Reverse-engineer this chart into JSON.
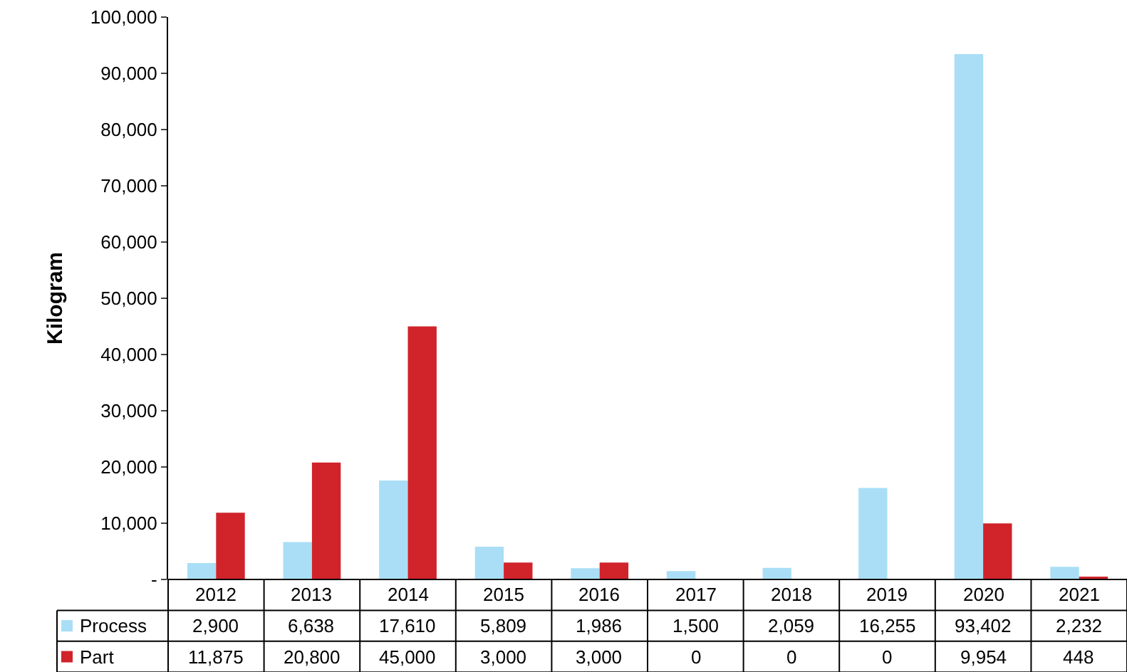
{
  "chart_data": {
    "type": "bar",
    "ylabel": "Kilogram",
    "categories": [
      "2012",
      "2013",
      "2014",
      "2015",
      "2016",
      "2017",
      "2018",
      "2019",
      "2020",
      "2021"
    ],
    "series": [
      {
        "name": "Process",
        "color": "#a9def6",
        "values": [
          2900,
          6638,
          17610,
          5809,
          1986,
          1500,
          2059,
          16255,
          93402,
          2232
        ],
        "value_labels": [
          "2,900",
          "6,638",
          "17,610",
          "5,809",
          "1,986",
          "1,500",
          "2,059",
          "16,255",
          "93,402",
          "2,232"
        ]
      },
      {
        "name": "Part",
        "color": "#d0232a",
        "values": [
          11875,
          20800,
          45000,
          3000,
          3000,
          0,
          0,
          0,
          9954,
          448
        ],
        "value_labels": [
          "11,875",
          "20,800",
          "45,000",
          "3,000",
          "3,000",
          "0",
          "0",
          "0",
          "9,954",
          "448"
        ]
      }
    ],
    "ylim": [
      0,
      100000
    ],
    "yticks": [
      {
        "value": 0,
        "label": "-"
      },
      {
        "value": 10000,
        "label": "10,000"
      },
      {
        "value": 20000,
        "label": "20,000"
      },
      {
        "value": 30000,
        "label": "30,000"
      },
      {
        "value": 40000,
        "label": "40,000"
      },
      {
        "value": 50000,
        "label": "50,000"
      },
      {
        "value": 60000,
        "label": "60,000"
      },
      {
        "value": 70000,
        "label": "70,000"
      },
      {
        "value": 80000,
        "label": "80,000"
      },
      {
        "value": 90000,
        "label": "90,000"
      },
      {
        "value": 100000,
        "label": "100,000"
      }
    ],
    "legend": "bottom"
  }
}
